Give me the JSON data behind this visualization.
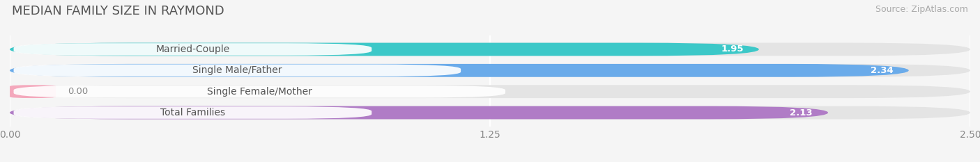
{
  "title": "MEDIAN FAMILY SIZE IN RAYMOND",
  "source": "Source: ZipAtlas.com",
  "categories": [
    "Married-Couple",
    "Single Male/Father",
    "Single Female/Mother",
    "Total Families"
  ],
  "values": [
    1.95,
    2.34,
    0.0,
    2.13
  ],
  "bar_colors": [
    "#3cc8c8",
    "#6aabea",
    "#f4a8bc",
    "#b07cc6"
  ],
  "xlim": [
    0,
    2.5
  ],
  "xticks": [
    0.0,
    1.25,
    2.5
  ],
  "xtick_labels": [
    "0.00",
    "1.25",
    "2.50"
  ],
  "bar_height": 0.62,
  "background_color": "#f5f5f5",
  "bar_bg_color": "#e4e4e4",
  "label_bg_color": "#ffffff",
  "title_fontsize": 13,
  "label_fontsize": 10,
  "value_fontsize": 9.5,
  "source_fontsize": 9,
  "title_color": "#555555",
  "label_color": "#555555",
  "source_color": "#aaaaaa"
}
